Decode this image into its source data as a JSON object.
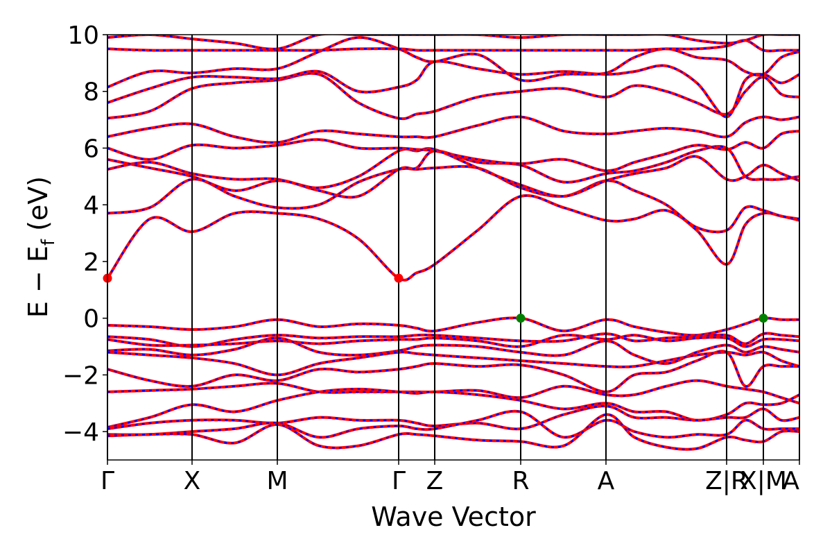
{
  "chart_data": {
    "type": "line",
    "xlabel": "Wave Vector",
    "ylabel": [
      "E − E",
      "f",
      " (eV)"
    ],
    "xlim": [
      0,
      9.98
    ],
    "xticks": [
      {
        "value": 0,
        "label": "Γ"
      },
      {
        "value": 1.22,
        "label": "X"
      },
      {
        "value": 2.45,
        "label": "M"
      },
      {
        "value": 4.2,
        "label": "Γ"
      },
      {
        "value": 4.72,
        "label": "Z"
      },
      {
        "value": 5.96,
        "label": "R"
      },
      {
        "value": 7.19,
        "label": "A"
      },
      {
        "value": 8.93,
        "label": "Z|R"
      },
      {
        "value": 9.46,
        "label": "X|M"
      },
      {
        "value": 9.98,
        "label": "A"
      }
    ],
    "ylim": [
      -5,
      10
    ],
    "yticks": [
      {
        "value": -4,
        "label": "−4"
      },
      {
        "value": -2,
        "label": "−2"
      },
      0,
      2,
      4,
      6,
      8,
      10
    ],
    "vertical_lines": true,
    "overlay_color": "#0000ff",
    "x": [
      0,
      0.61,
      1.22,
      1.835,
      2.45,
      3.05,
      3.62,
      4.2,
      4.46,
      4.72,
      5.34,
      5.96,
      6.58,
      7.19,
      7.6,
      8.06,
      8.5,
      8.93,
      9.2,
      9.46,
      9.72,
      9.98
    ],
    "series": [
      {
        "color": "#ff0000",
        "values": [
          1.41,
          3.5,
          3.05,
          3.7,
          3.7,
          3.5,
          2.8,
          1.41,
          1.6,
          1.9,
          3.1,
          4.3,
          3.9,
          3.45,
          3.5,
          3.8,
          3.1,
          1.9,
          3.3,
          3.7,
          3.6,
          3.45
        ]
      },
      {
        "color": "#ff0000",
        "values": [
          3.7,
          3.9,
          4.9,
          4.3,
          3.9,
          4.0,
          4.8,
          5.25,
          5.25,
          5.3,
          5.3,
          4.6,
          4.3,
          4.85,
          4.5,
          4.0,
          3.2,
          3.1,
          3.9,
          3.8,
          3.6,
          3.5
        ]
      },
      {
        "color": "#ff0000",
        "values": [
          5.25,
          5.5,
          5.1,
          4.9,
          4.9,
          4.5,
          4.3,
          5.25,
          5.3,
          5.9,
          5.5,
          5.4,
          4.8,
          5.1,
          5.2,
          5.5,
          5.9,
          6.0,
          5.0,
          4.9,
          4.9,
          5.0
        ]
      },
      {
        "color": "#ff0000",
        "values": [
          5.6,
          5.3,
          5.0,
          4.5,
          4.85,
          4.6,
          5.0,
          5.9,
          5.9,
          5.95,
          5.3,
          4.7,
          4.3,
          4.85,
          5.1,
          5.3,
          5.7,
          4.9,
          5.0,
          5.4,
          5.1,
          4.85
        ]
      },
      {
        "color": "#ff0000",
        "values": [
          6.0,
          5.6,
          6.1,
          6.0,
          6.1,
          6.3,
          6.0,
          6.0,
          5.95,
          5.9,
          5.6,
          5.45,
          5.6,
          5.2,
          5.5,
          5.8,
          6.1,
          5.95,
          6.2,
          6.0,
          6.5,
          6.6
        ]
      },
      {
        "color": "#ff0000",
        "values": [
          6.4,
          6.7,
          6.85,
          6.4,
          6.2,
          6.6,
          6.5,
          6.4,
          6.4,
          6.4,
          6.8,
          7.1,
          6.6,
          6.5,
          6.6,
          6.7,
          6.6,
          6.4,
          6.9,
          7.1,
          7.0,
          7.1
        ]
      },
      {
        "color": "#ff0000",
        "values": [
          7.05,
          7.3,
          8.1,
          8.3,
          8.4,
          8.6,
          7.6,
          7.05,
          7.2,
          7.3,
          7.8,
          8.0,
          8.1,
          7.8,
          8.2,
          8.0,
          7.6,
          7.2,
          8.0,
          8.5,
          7.9,
          7.8
        ]
      },
      {
        "color": "#ff0000",
        "values": [
          7.6,
          8.1,
          8.5,
          8.5,
          8.45,
          8.7,
          8.0,
          8.15,
          8.4,
          9.05,
          8.8,
          8.6,
          8.7,
          8.6,
          8.7,
          8.9,
          8.3,
          7.1,
          8.4,
          8.6,
          8.3,
          8.6
        ]
      },
      {
        "color": "#ff0000",
        "values": [
          8.15,
          8.7,
          8.65,
          8.8,
          8.8,
          9.4,
          9.9,
          9.5,
          9.2,
          9.05,
          9.3,
          8.4,
          8.6,
          8.65,
          9.2,
          9.5,
          9.2,
          9.1,
          8.7,
          8.6,
          9.2,
          9.4
        ]
      },
      {
        "color": "#ff0000",
        "values": [
          9.5,
          9.45,
          9.45,
          9.45,
          9.45,
          9.45,
          9.5,
          9.5,
          9.45,
          9.45,
          9.45,
          9.45,
          9.45,
          9.45,
          9.45,
          9.5,
          9.5,
          9.6,
          9.8,
          9.45,
          9.45,
          9.45
        ]
      },
      {
        "color": "#ff0000",
        "values": [
          9.9,
          10.0,
          9.85,
          9.7,
          9.5,
          10.0,
          10.0,
          10.0,
          10.0,
          10.0,
          10.0,
          9.9,
          10.0,
          10.0,
          10.0,
          10.0,
          9.8,
          9.7,
          9.8,
          10.0,
          10.0,
          10.0
        ]
      },
      {
        "color": "#ff0000",
        "values": [
          -0.25,
          -0.3,
          -0.4,
          -0.3,
          -0.05,
          -0.3,
          -0.2,
          -0.25,
          -0.35,
          -0.45,
          -0.15,
          0.0,
          -0.45,
          -0.05,
          -0.3,
          -0.5,
          -0.6,
          -0.4,
          -0.2,
          0.0,
          -0.05,
          -0.05
        ]
      },
      {
        "color": "#ff0000",
        "values": [
          -0.65,
          -0.75,
          -1.0,
          -0.75,
          -0.6,
          -0.7,
          -0.65,
          -0.65,
          -0.6,
          -0.6,
          -0.7,
          -0.8,
          -0.8,
          -0.55,
          -0.8,
          -0.7,
          -0.65,
          -0.6,
          -0.9,
          -0.55,
          -0.6,
          -0.65
        ]
      },
      {
        "color": "#ff0000",
        "values": [
          -0.75,
          -0.95,
          -0.95,
          -0.9,
          -0.8,
          -0.9,
          -0.8,
          -0.75,
          -0.75,
          -0.7,
          -0.8,
          -1.0,
          -0.6,
          -0.75,
          -0.6,
          -0.8,
          -0.7,
          -0.7,
          -1.0,
          -0.75,
          -0.75,
          -0.8
        ]
      },
      {
        "color": "#ff0000",
        "values": [
          -1.15,
          -1.1,
          -1.3,
          -1.1,
          -0.7,
          -1.2,
          -1.3,
          -1.15,
          -1.0,
          -0.95,
          -1.0,
          -1.2,
          -1.3,
          -0.8,
          -1.3,
          -1.6,
          -1.2,
          -0.95,
          -1.2,
          -1.0,
          -1.1,
          -1.2
        ]
      },
      {
        "color": "#ff0000",
        "values": [
          -1.2,
          -1.3,
          -1.4,
          -1.6,
          -2.0,
          -1.6,
          -1.4,
          -1.2,
          -1.25,
          -1.3,
          -1.4,
          -1.5,
          -1.6,
          -1.7,
          -1.7,
          -1.5,
          -1.3,
          -1.2,
          -1.3,
          -1.2,
          -1.5,
          -1.7
        ]
      },
      {
        "color": "#ff0000",
        "values": [
          -1.8,
          -2.2,
          -2.4,
          -2.0,
          -2.2,
          -1.8,
          -1.9,
          -1.8,
          -1.7,
          -1.6,
          -1.7,
          -1.65,
          -2.0,
          -2.6,
          -2.0,
          -1.9,
          -1.5,
          -1.2,
          -2.4,
          -1.7,
          -1.7,
          -1.7
        ]
      },
      {
        "color": "#ff0000",
        "values": [
          -2.6,
          -2.55,
          -2.5,
          -2.4,
          -2.3,
          -2.6,
          -2.6,
          -2.6,
          -2.6,
          -2.6,
          -2.55,
          -2.8,
          -2.4,
          -2.7,
          -2.7,
          -2.4,
          -2.2,
          -2.4,
          -2.5,
          -2.6,
          -2.8,
          -3.0
        ]
      },
      {
        "color": "#ff0000",
        "values": [
          -3.85,
          -3.5,
          -3.05,
          -3.3,
          -2.9,
          -2.6,
          -2.5,
          -2.6,
          -2.65,
          -2.6,
          -2.7,
          -2.9,
          -3.2,
          -3.0,
          -3.3,
          -3.3,
          -3.6,
          -3.4,
          -3.0,
          -3.05,
          -3.0,
          -2.7
        ]
      },
      {
        "color": "#ff0000",
        "values": [
          -3.9,
          -3.7,
          -3.6,
          -3.6,
          -3.7,
          -3.5,
          -3.6,
          -3.6,
          -3.7,
          -3.8,
          -3.7,
          -3.9,
          -3.4,
          -3.1,
          -3.5,
          -3.5,
          -3.6,
          -3.5,
          -3.5,
          -3.2,
          -3.6,
          -3.5
        ]
      },
      {
        "color": "#ff0000",
        "values": [
          -4.1,
          -4.1,
          -4.0,
          -3.9,
          -3.7,
          -4.2,
          -3.9,
          -3.8,
          -3.9,
          -3.9,
          -3.6,
          -3.3,
          -4.2,
          -3.6,
          -4.0,
          -4.2,
          -4.1,
          -4.1,
          -3.6,
          -3.9,
          -3.9,
          -3.9
        ]
      },
      {
        "color": "#ff0000",
        "values": [
          -4.15,
          -4.1,
          -4.1,
          -4.4,
          -3.75,
          -4.5,
          -4.5,
          -4.1,
          -4.1,
          -4.15,
          -4.3,
          -4.35,
          -4.5,
          -3.4,
          -4.2,
          -4.55,
          -4.6,
          -4.2,
          -4.3,
          -4.35,
          -4.0,
          -4.0
        ]
      }
    ],
    "markers": [
      {
        "x": 0,
        "y": 1.41,
        "color": "#ff0000"
      },
      {
        "x": 4.2,
        "y": 1.41,
        "color": "#ff0000"
      },
      {
        "x": 5.96,
        "y": 0,
        "color": "#008000"
      },
      {
        "x": 9.46,
        "y": 0,
        "color": "#008000"
      }
    ]
  }
}
